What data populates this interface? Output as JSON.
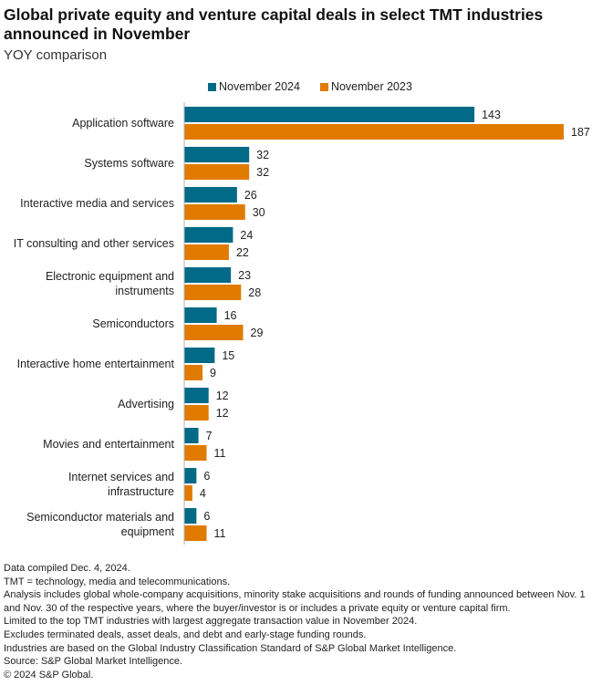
{
  "chart_data": {
    "type": "bar",
    "orientation": "horizontal",
    "title": "Global private equity and venture capital deals in select TMT industries announced in November",
    "subtitle": "YOY comparison",
    "xlabel": "",
    "ylabel": "",
    "xlim": [
      0,
      187
    ],
    "grid": false,
    "legend_position": "top-center",
    "categories": [
      "Application software",
      "Systems software",
      "Interactive media and services",
      "IT consulting and other services",
      "Electronic equipment and instruments",
      "Semiconductors",
      "Interactive home entertainment",
      "Advertising",
      "Movies and entertainment",
      "Internet services and infrastructure",
      "Semiconductor materials and equipment"
    ],
    "category_lines": [
      [
        "Application software"
      ],
      [
        "Systems software"
      ],
      [
        "Interactive media and services"
      ],
      [
        "IT consulting and other services"
      ],
      [
        "Electronic equipment and",
        "instruments"
      ],
      [
        "Semiconductors"
      ],
      [
        "Interactive home entertainment"
      ],
      [
        "Advertising"
      ],
      [
        "Movies and entertainment"
      ],
      [
        "Internet services and",
        "infrastructure"
      ],
      [
        "Semiconductor materials and",
        "equipment"
      ]
    ],
    "series": [
      {
        "name": "November 2024",
        "color": "#006a87",
        "values": [
          143,
          32,
          26,
          24,
          23,
          16,
          15,
          12,
          7,
          6,
          6
        ]
      },
      {
        "name": "November 2023",
        "color": "#e07b00",
        "values": [
          187,
          32,
          30,
          22,
          28,
          29,
          9,
          12,
          11,
          4,
          11
        ]
      }
    ]
  },
  "notes": [
    "Data compiled Dec. 4, 2024.",
    "TMT = technology, media and telecommunications.",
    "Analysis includes global whole-company acquisitions, minority stake acquisitions and rounds of funding announced between Nov. 1 and Nov. 30 of the respective years, where the buyer/investor is or includes a private equity or venture capital firm.",
    "Limited to the top TMT industries with largest aggregate transaction value in November 2024.",
    "Excludes terminated deals, asset deals, and debt and early-stage funding rounds.",
    "Industries are based on the Global Industry Classification Standard of S&P Global Market Intelligence.",
    "Source: S&P Global Market Intelligence.",
    "© 2024 S&P Global."
  ]
}
